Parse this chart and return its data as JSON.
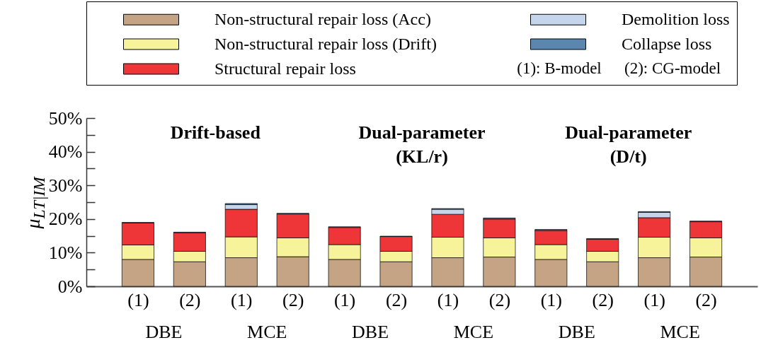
{
  "chart_data": {
    "type": "bar",
    "stacked": true,
    "ylabel": "μ$_{LT|IM}$",
    "categories": [
      "(1)",
      "(2)",
      "(1)",
      "(2)",
      "(1)",
      "(2)",
      "(1)",
      "(2)",
      "(1)",
      "(2)",
      "(1)",
      "(2)"
    ],
    "series": [
      {
        "name": "Non-structural repair loss (Acc)",
        "color": "#c4a484",
        "values": [
          8.0,
          7.3,
          8.5,
          8.8,
          8.0,
          7.3,
          8.5,
          8.7,
          8.0,
          7.3,
          8.5,
          8.7
        ]
      },
      {
        "name": "Non-structural repair loss (Drift)",
        "color": "#f7f39b",
        "values": [
          4.3,
          3.1,
          6.2,
          5.6,
          4.4,
          3.1,
          6.1,
          5.7,
          4.4,
          3.1,
          6.1,
          5.7
        ]
      },
      {
        "name": "Structural repair loss",
        "color": "#ee3537",
        "values": [
          6.5,
          5.5,
          8.2,
          7.1,
          5.1,
          4.4,
          6.8,
          5.6,
          4.2,
          3.6,
          5.8,
          4.8
        ]
      },
      {
        "name": "Demolition loss",
        "color": "#c5d5ec",
        "values": [
          null,
          null,
          1.4,
          null,
          null,
          null,
          1.5,
          null,
          null,
          null,
          1.6,
          null
        ]
      },
      {
        "name": "Collapse loss",
        "color": "#5b86ad",
        "values": [
          0.2,
          0.2,
          0.3,
          0.2,
          0.2,
          0.1,
          0.2,
          0.3,
          0.3,
          0.2,
          0.2,
          0.2
        ]
      }
    ],
    "ylim": [
      0,
      50
    ],
    "yticks": [
      {
        "value": 0,
        "label": "0%"
      },
      {
        "value": 5,
        "label": null
      },
      {
        "value": 10,
        "label": "10%"
      },
      {
        "value": 15,
        "label": null
      },
      {
        "value": 20,
        "label": "20%"
      },
      {
        "value": 25,
        "label": null
      },
      {
        "value": 30,
        "label": "30%"
      },
      {
        "value": 35,
        "label": null
      },
      {
        "value": 40,
        "label": "40%"
      },
      {
        "value": 45,
        "label": null
      },
      {
        "value": 50,
        "label": "50%"
      }
    ],
    "grid": false,
    "legend": "top",
    "annotations": [
      "Drift-based",
      "Dual-parameter\n(KL/r)",
      "Dual-parameter\n(D/t)",
      "DBE",
      "MCE",
      "DBE",
      "MCE",
      "DBE",
      "MCE",
      "(1): B-model",
      "(2): CG-model"
    ]
  }
}
